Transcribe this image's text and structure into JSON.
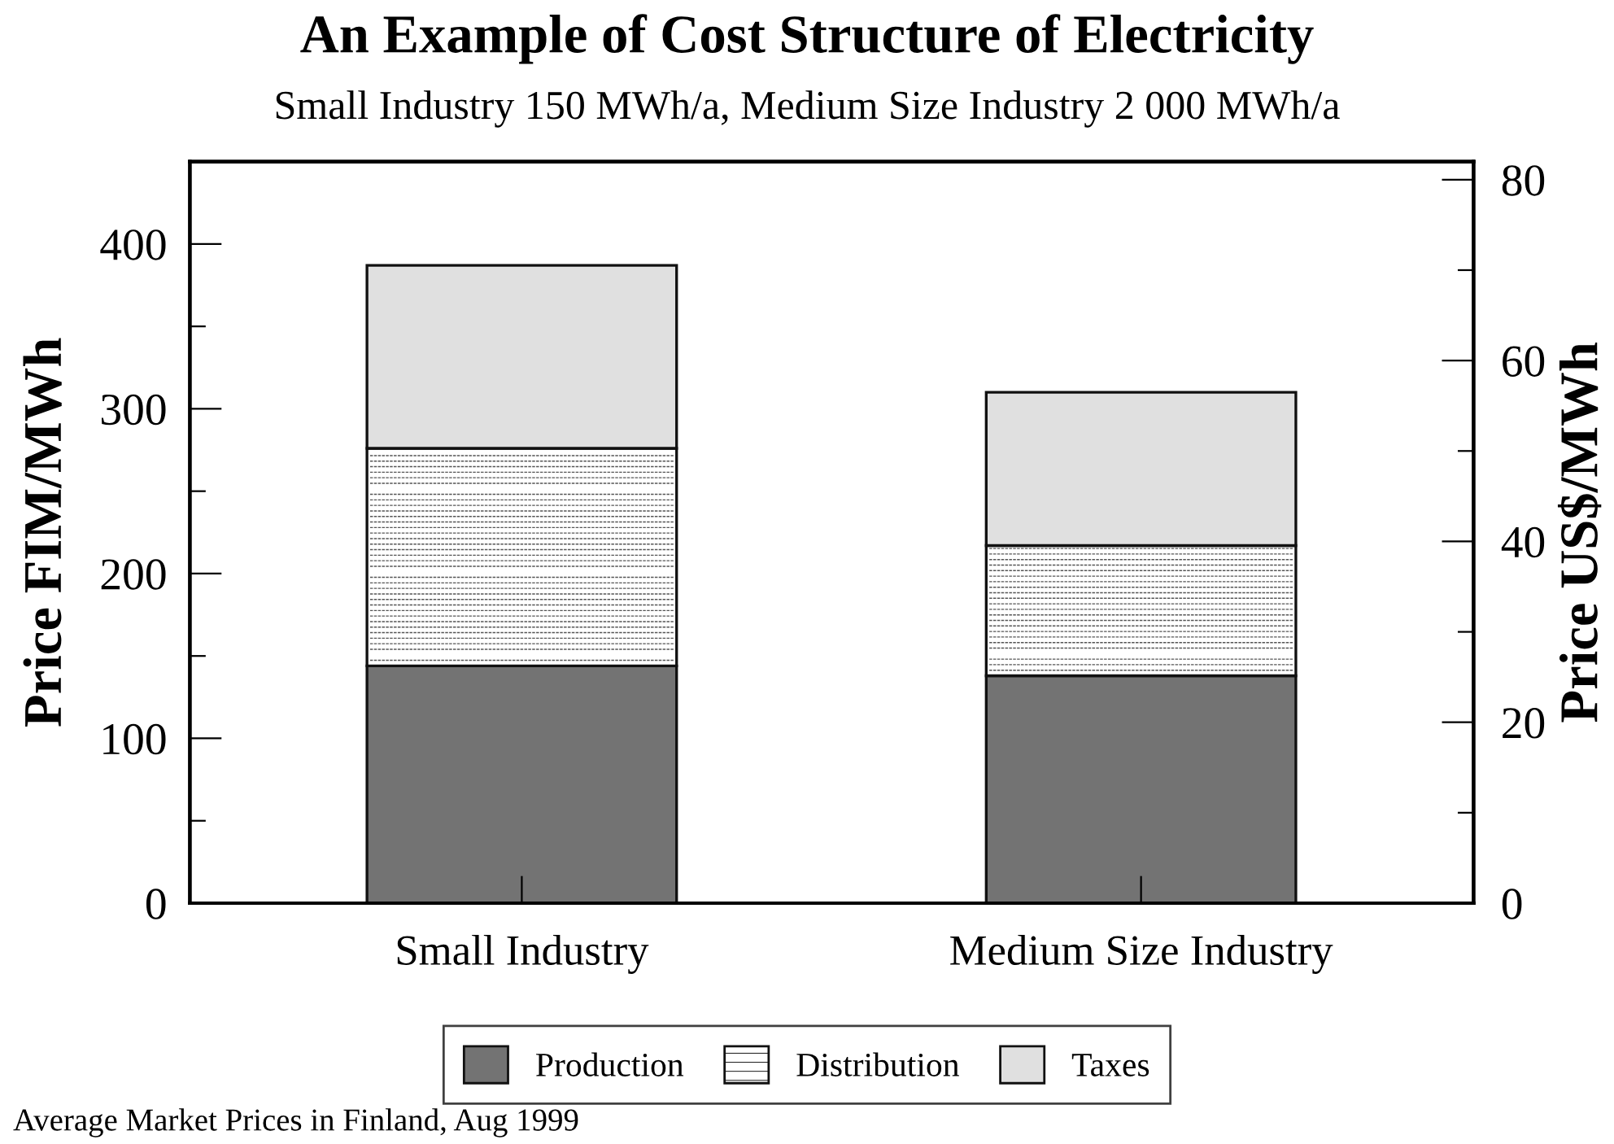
{
  "chart_data": {
    "type": "bar",
    "stacked": true,
    "title": "An Example of Cost Structure of Electricity",
    "subtitle": "Small Industry 150 MWh/a, Medium Size Industry 2 000 MWh/a",
    "ylabel": "Price FIM/MWh",
    "y2label": "Price US$/MWh",
    "categories": [
      "Small Industry",
      "Medium Size Industry"
    ],
    "series": [
      {
        "name": "Production",
        "color": "#737373",
        "values": [
          144,
          138
        ]
      },
      {
        "name": "Distribution",
        "color": "#ffffff",
        "values": [
          132,
          79
        ]
      },
      {
        "name": "Taxes",
        "color": "#e0e0e0",
        "values": [
          111,
          93
        ]
      }
    ],
    "ylim": [
      0,
      450
    ],
    "yticks": [
      0,
      {
        "value": 50,
        "label": null
      },
      100,
      {
        "value": 150,
        "label": null
      },
      200,
      {
        "value": 250,
        "label": null
      },
      300,
      {
        "value": 350,
        "label": null
      },
      400
    ],
    "y2lim": [
      0,
      82
    ],
    "y2ticks": [
      0,
      {
        "value": 10,
        "label": null
      },
      20,
      {
        "value": 30,
        "label": null
      },
      40,
      {
        "value": 50,
        "label": null
      },
      60,
      {
        "value": 70,
        "label": null
      },
      80
    ],
    "legend": "bottom",
    "grid": false,
    "annotations": [
      "Average Market Prices in Finland, Aug 1999"
    ]
  }
}
